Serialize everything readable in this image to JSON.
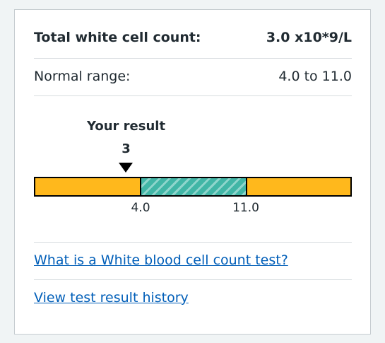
{
  "result": {
    "label": "Total white cell count:",
    "value": "3.0 x10*9/L"
  },
  "range": {
    "label": "Normal range:",
    "value": "4.0 to 11.0"
  },
  "indicator": {
    "marker_label": "Your result",
    "marker_value": "3",
    "lower_tick": "4.0",
    "upper_tick": "11.0",
    "result_value": 3.0,
    "normal_low": 4.0,
    "normal_high": 11.0
  },
  "colors": {
    "out_of_range": "#ffb81c",
    "in_range": "#41b6a6",
    "link": "#005eb8"
  },
  "links": {
    "test_info": "What is a White blood cell count test?",
    "history": "View test result history"
  }
}
